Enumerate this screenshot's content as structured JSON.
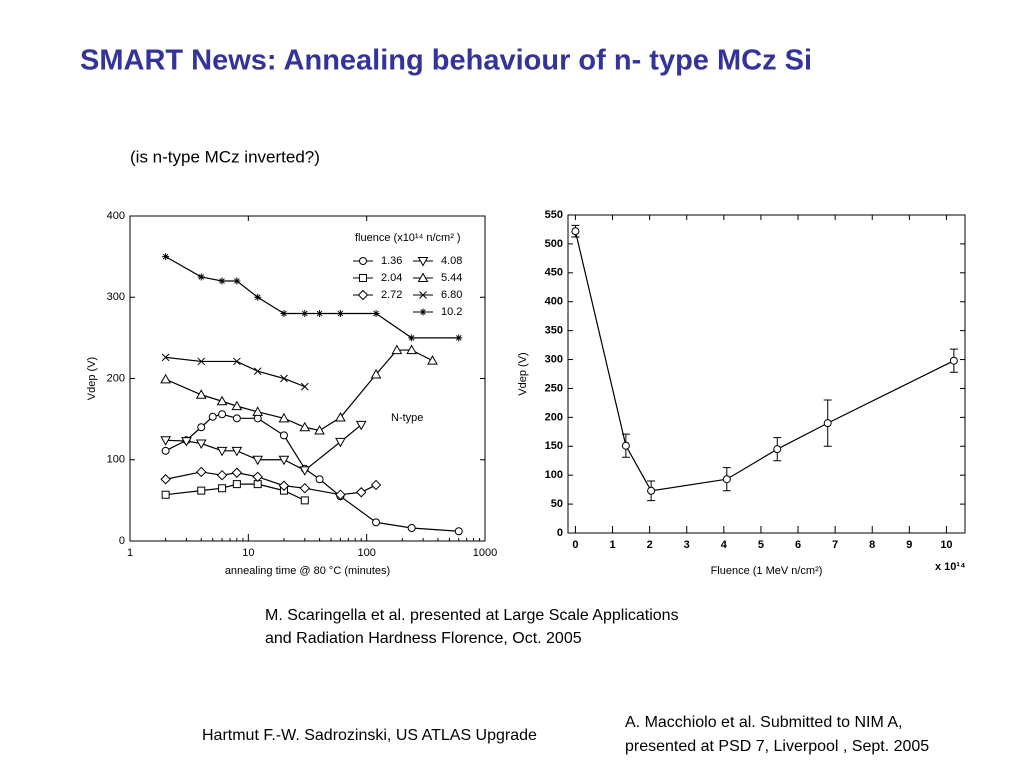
{
  "slide": {
    "title": "SMART News: Annealing behaviour of n- type MCz Si",
    "subtitle": "(is n-type MCz inverted?)",
    "citation_1": [
      "M. Scaringella et al. presented at Large Scale Applications",
      "and Radiation Hardness Florence, Oct. 2005"
    ],
    "footer": "Hartmut F.-W. Sadrozinski, US ATLAS Upgrade",
    "citation_2": [
      "A.    Macchiolo et al. Submitted to NIM A,",
      "presented at PSD 7, Liverpool , Sept. 2005"
    ]
  },
  "chart_data": [
    {
      "type": "line",
      "xscale": "log",
      "xlabel": "annealing time @ 80 °C (minutes)",
      "ylabel": "Vdep (V)",
      "legend_title": "fluence (x10¹⁴ n/cm² )",
      "legend": "upper right",
      "annotation": "N-type",
      "xlim": [
        1,
        1000
      ],
      "xticks": [
        1,
        10,
        100,
        1000
      ],
      "ylim": [
        0,
        400
      ],
      "yticks": [
        0,
        100,
        200,
        300,
        400
      ],
      "series": [
        {
          "name": "1.36",
          "color": "#000000",
          "marker": "circle",
          "x": [
            2,
            3,
            4,
            5,
            6,
            8,
            12,
            20,
            30,
            40,
            60,
            120,
            240,
            600
          ],
          "values": [
            111,
            124,
            140,
            153,
            156,
            151,
            151,
            130,
            89,
            76,
            55,
            23,
            16,
            12
          ]
        },
        {
          "name": "2.04",
          "color": "#000000",
          "marker": "square",
          "x": [
            2,
            4,
            6,
            8,
            12,
            20,
            30
          ],
          "values": [
            57,
            62,
            65,
            70,
            70,
            62,
            50
          ]
        },
        {
          "name": "2.72",
          "color": "#000000",
          "marker": "diamond",
          "x": [
            2,
            4,
            6,
            8,
            12,
            20,
            30,
            60,
            90,
            120
          ],
          "values": [
            76,
            85,
            81,
            84,
            79,
            68,
            65,
            57,
            60,
            69
          ]
        },
        {
          "name": "4.08",
          "color": "#000000",
          "marker": "triangle-down",
          "x": [
            2,
            3,
            4,
            6,
            8,
            12,
            20,
            30,
            60,
            90
          ],
          "values": [
            124,
            123,
            120,
            111,
            111,
            100,
            100,
            87,
            122,
            143
          ]
        },
        {
          "name": "5.44",
          "color": "#000000",
          "marker": "triangle-up",
          "x": [
            2,
            4,
            6,
            8,
            12,
            20,
            30,
            40,
            60,
            120,
            180,
            240,
            360
          ],
          "values": [
            199,
            180,
            172,
            166,
            159,
            151,
            140,
            136,
            152,
            205,
            235,
            235,
            222
          ]
        },
        {
          "name": "6.80",
          "color": "#000000",
          "marker": "x",
          "x": [
            2,
            4,
            8,
            12,
            20,
            30
          ],
          "values": [
            226,
            221,
            221,
            209,
            200,
            190
          ]
        },
        {
          "name": "10.2",
          "color": "#000000",
          "marker": "star",
          "x": [
            2,
            4,
            6,
            8,
            12,
            20,
            30,
            40,
            60,
            120,
            240,
            600
          ],
          "values": [
            350,
            325,
            320,
            320,
            300,
            280,
            280,
            280,
            280,
            280,
            250,
            250
          ]
        }
      ]
    },
    {
      "type": "line",
      "xlabel": "Fluence (1 MeV n/cm²)",
      "ylabel": "Vdep (V)",
      "x_multiplier": "x 10¹⁴",
      "xlim": [
        -0.2,
        10.5
      ],
      "xticks": [
        0,
        1,
        2,
        3,
        4,
        5,
        6,
        7,
        8,
        9,
        10
      ],
      "ylim": [
        0,
        550
      ],
      "yticks": [
        0,
        50,
        100,
        150,
        200,
        250,
        300,
        350,
        400,
        450,
        500,
        550
      ],
      "series": [
        {
          "color": "#000000",
          "marker": "circle",
          "x": [
            0,
            1.36,
            2.04,
            4.08,
            5.44,
            6.8,
            10.2
          ],
          "values": [
            522,
            151,
            73,
            93,
            145,
            190,
            298
          ],
          "errors": [
            10,
            20,
            17,
            20,
            20,
            40,
            20
          ]
        }
      ]
    }
  ]
}
